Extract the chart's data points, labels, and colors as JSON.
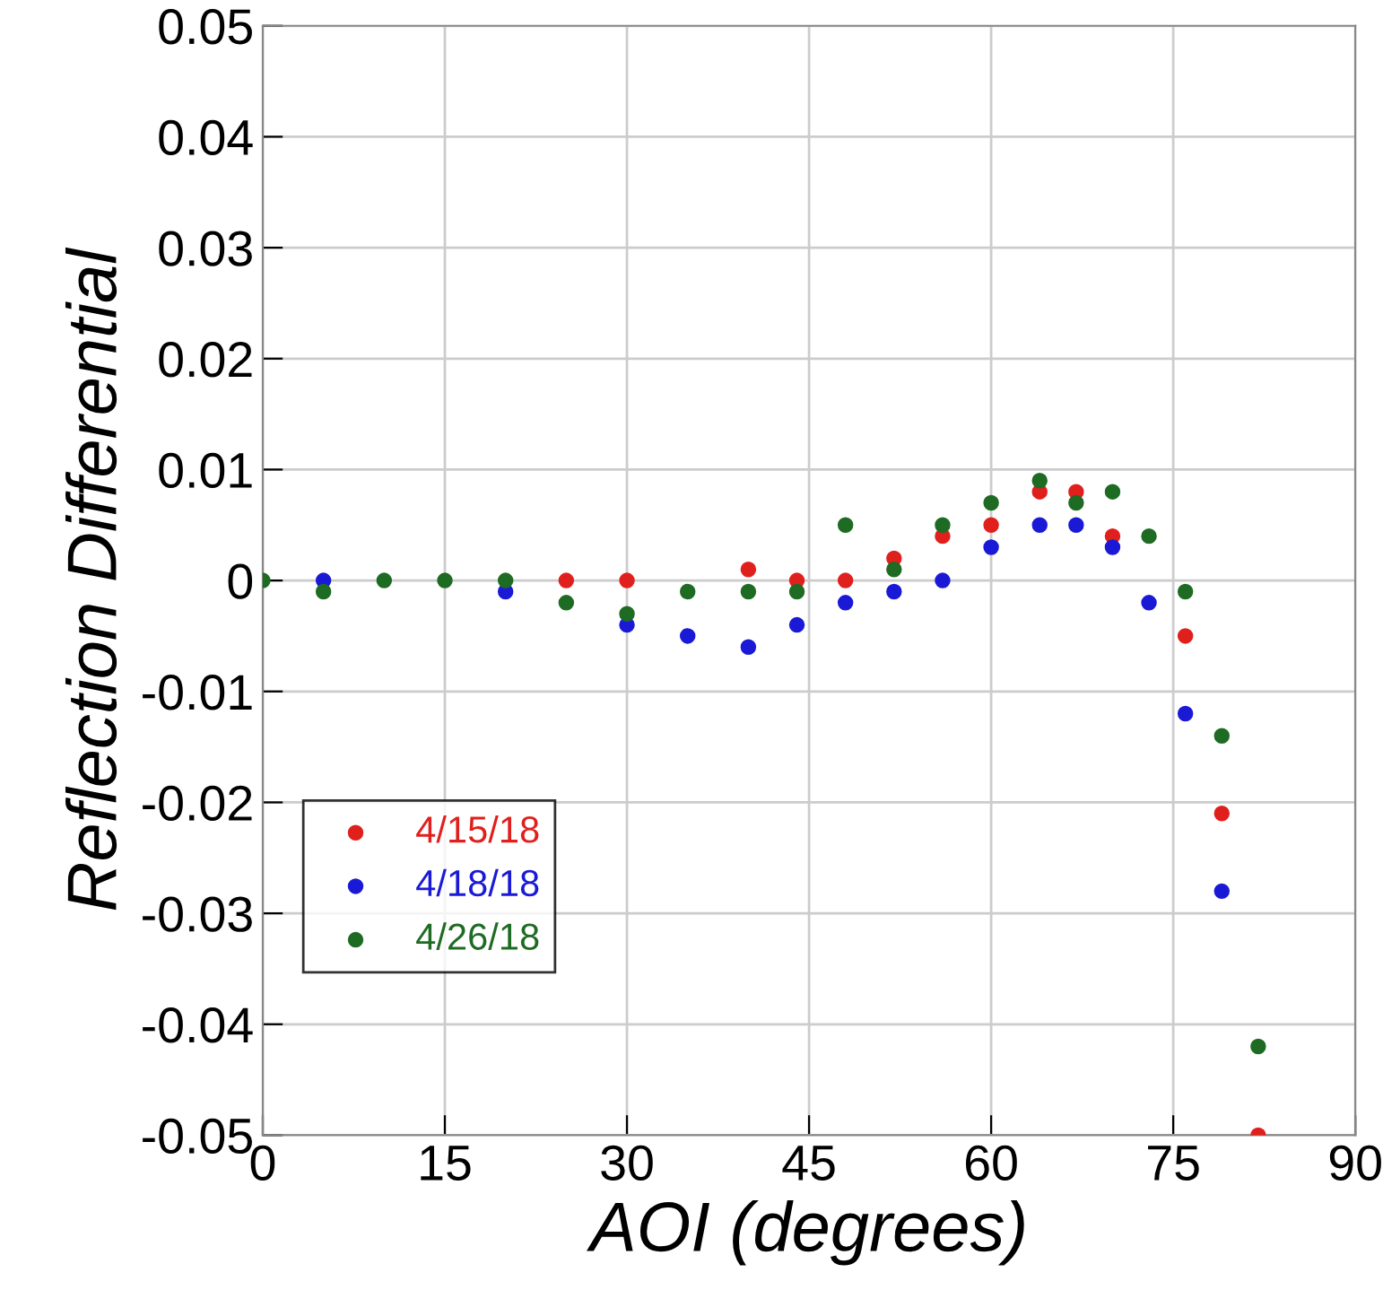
{
  "chart_data": {
    "type": "scatter",
    "xlabel": "AOI (degrees)",
    "ylabel": "Reflection Differential",
    "xlim": [
      0,
      90
    ],
    "xticks": [
      0,
      15,
      30,
      45,
      60,
      75,
      90
    ],
    "ylim": [
      -0.05,
      0.05
    ],
    "yticks": [
      {
        "value": -0.05,
        "label": "-0.05"
      },
      {
        "value": -0.04,
        "label": "-0.04"
      },
      {
        "value": -0.03,
        "label": "-0.03"
      },
      {
        "value": -0.02,
        "label": "-0.02"
      },
      {
        "value": -0.01,
        "label": "-0.01"
      },
      {
        "value": 0,
        "label": "0"
      },
      {
        "value": 0.01,
        "label": "0.01"
      },
      {
        "value": 0.02,
        "label": "0.02"
      },
      {
        "value": 0.03,
        "label": "0.03"
      },
      {
        "value": 0.04,
        "label": "0.04"
      },
      {
        "value": 0.05,
        "label": "0.05"
      }
    ],
    "grid": true,
    "legend": "bottom left",
    "marker": "circle",
    "series": [
      {
        "name": "4/15/18",
        "color": "#e0201c",
        "x": [
          25,
          30,
          40,
          44,
          48,
          52,
          56,
          60,
          64,
          67,
          70,
          76,
          79,
          82
        ],
        "values": [
          0,
          0,
          0.001,
          0,
          0,
          0.002,
          0.004,
          0.005,
          0.008,
          0.008,
          0.004,
          -0.005,
          -0.021,
          -0.05
        ]
      },
      {
        "name": "4/18/18",
        "color": "#1a1ad6",
        "x": [
          5,
          20,
          30,
          35,
          40,
          44,
          48,
          52,
          56,
          60,
          64,
          67,
          70,
          73,
          76,
          79
        ],
        "values": [
          0,
          -0.001,
          -0.004,
          -0.005,
          -0.006,
          -0.004,
          -0.002,
          -0.001,
          0,
          0.003,
          0.005,
          0.005,
          0.003,
          -0.002,
          -0.012,
          -0.028
        ]
      },
      {
        "name": "4/26/18",
        "color": "#1e6b23",
        "x": [
          0,
          5,
          10,
          15,
          20,
          25,
          30,
          35,
          40,
          44,
          48,
          52,
          56,
          60,
          64,
          67,
          70,
          73,
          76,
          79,
          82
        ],
        "values": [
          0,
          -0.001,
          0,
          0,
          0,
          -0.002,
          -0.003,
          -0.001,
          -0.001,
          -0.001,
          0.005,
          0.001,
          0.005,
          0.007,
          0.009,
          0.007,
          0.008,
          0.004,
          -0.001,
          -0.014,
          -0.042
        ]
      }
    ]
  }
}
